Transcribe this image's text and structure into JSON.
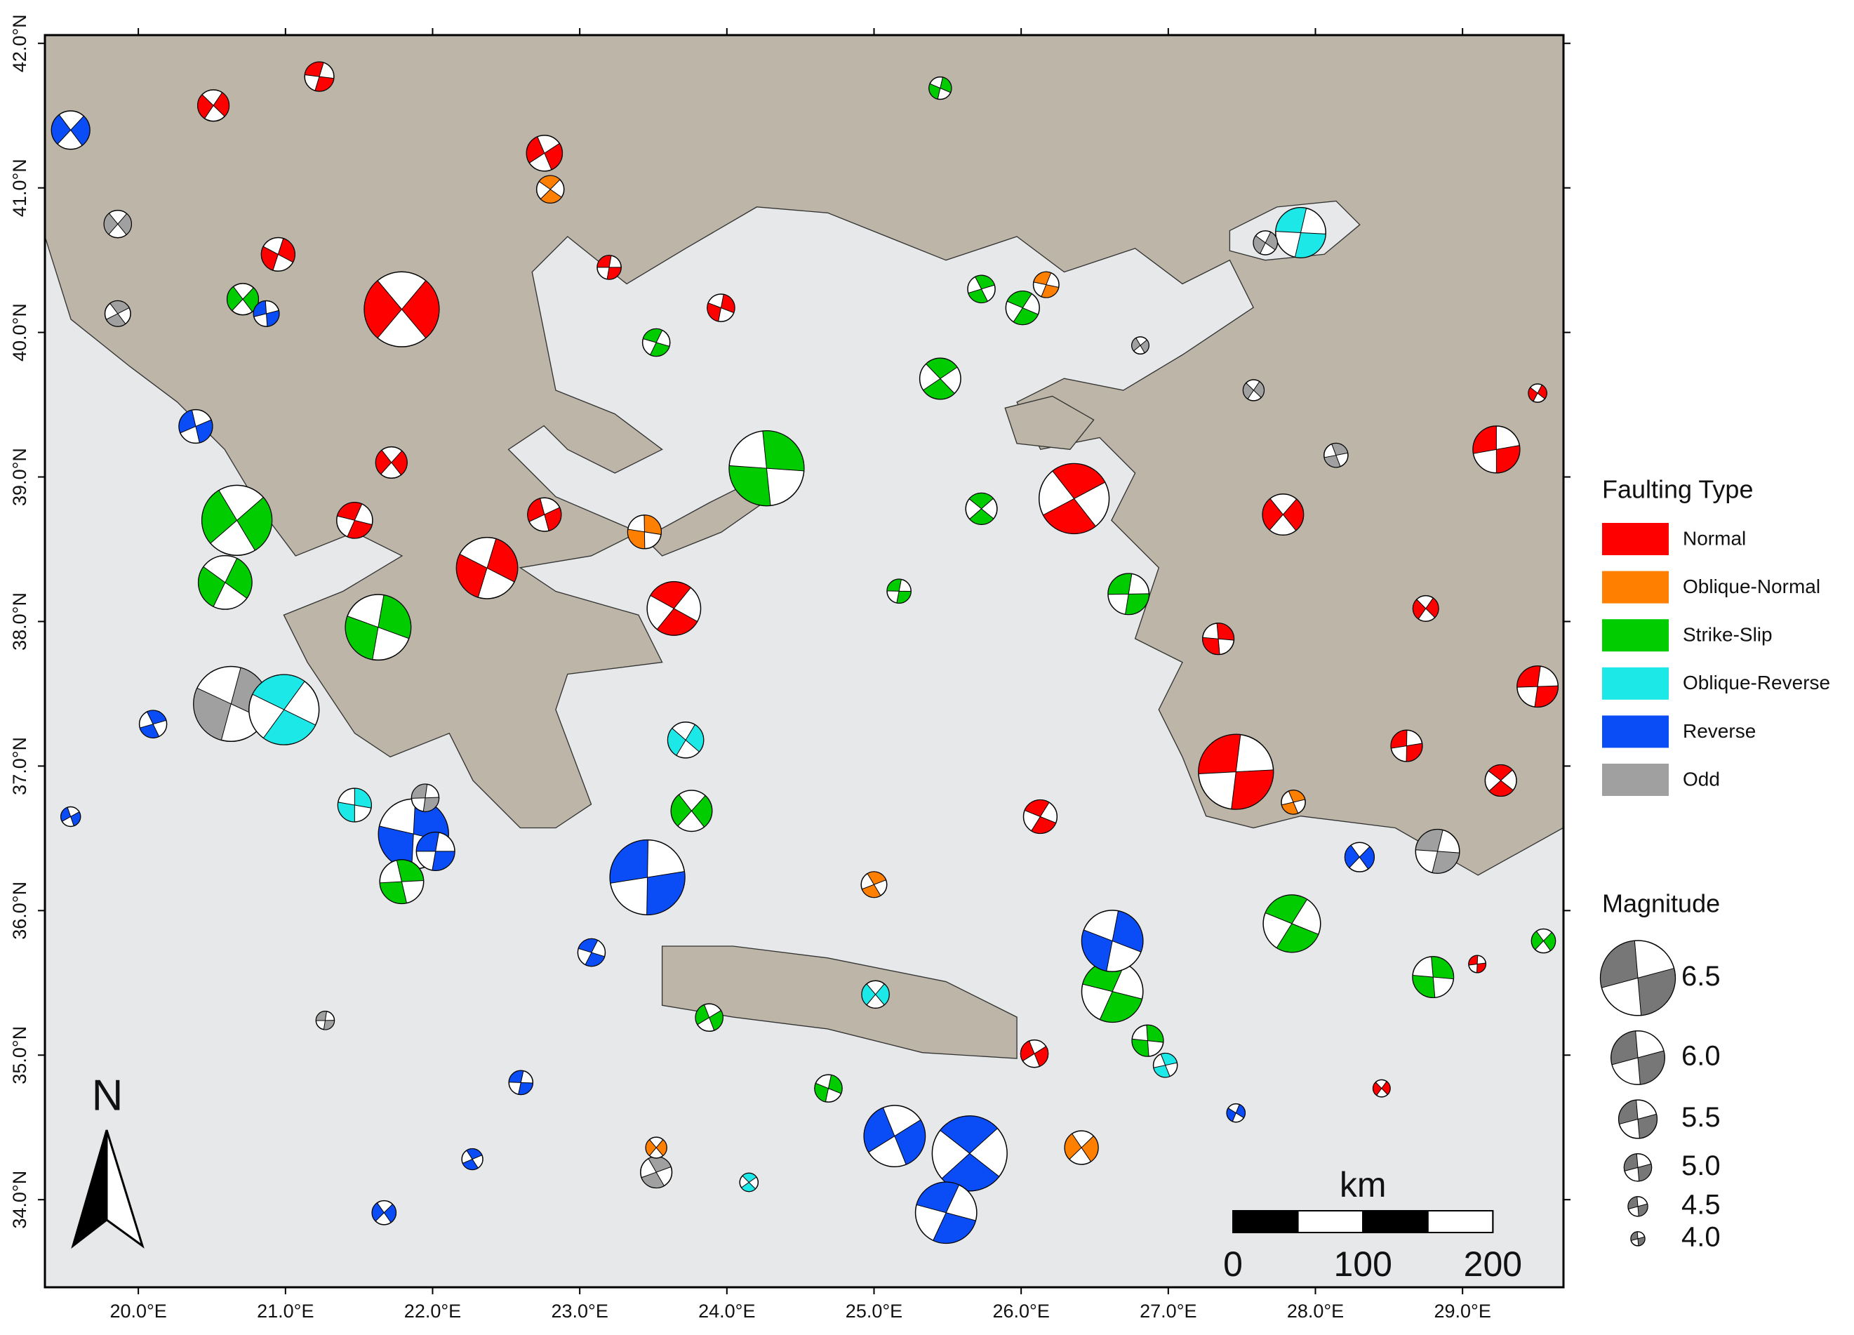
{
  "chart_data": {
    "type": "map",
    "xlim": [
      19.365,
      29.686
    ],
    "ylim": [
      33.394,
      42.057
    ],
    "xticks": [
      {
        "value": 20,
        "label": "20.0°E"
      },
      {
        "value": 21,
        "label": "21.0°E"
      },
      {
        "value": 22,
        "label": "22.0°E"
      },
      {
        "value": 23,
        "label": "23.0°E"
      },
      {
        "value": 24,
        "label": "24.0°E"
      },
      {
        "value": 25,
        "label": "25.0°E"
      },
      {
        "value": 26,
        "label": "26.0°E"
      },
      {
        "value": 27,
        "label": "27.0°E"
      },
      {
        "value": 28,
        "label": "28.0°E"
      },
      {
        "value": 29,
        "label": "29.0°E"
      }
    ],
    "yticks": [
      {
        "value": 34,
        "label": "34.0°N"
      },
      {
        "value": 35,
        "label": "35.0°N"
      },
      {
        "value": 36,
        "label": "36.0°N"
      },
      {
        "value": 37,
        "label": "37.0°N"
      },
      {
        "value": 38,
        "label": "38.0°N"
      },
      {
        "value": 39,
        "label": "39.0°N"
      },
      {
        "value": 40,
        "label": "40.0°N"
      },
      {
        "value": 41,
        "label": "41.0°N"
      },
      {
        "value": 42,
        "label": "42.0°N"
      }
    ],
    "legend": {
      "title": "Faulting Type",
      "position": "right"
    },
    "series": [
      {
        "name": "Normal",
        "color": "#ff0000",
        "x": [
          21.79,
          26.36,
          27.46,
          22.37,
          23.64,
          29.23,
          27.78,
          29.51,
          22.76,
          20.51,
          20.95,
          22.76,
          21.23,
          28.45,
          28.62,
          29.26,
          28.75,
          27.34,
          26.13,
          29.51,
          23.96,
          21.72,
          21.47,
          26.09,
          29.1,
          23.2
        ],
        "y": [
          40.16,
          38.85,
          36.96,
          38.37,
          38.09,
          39.19,
          38.74,
          37.55,
          41.24,
          41.57,
          40.54,
          38.74,
          41.77,
          34.77,
          37.14,
          36.9,
          38.09,
          37.88,
          36.65,
          39.58,
          40.17,
          39.1,
          38.7,
          35.01,
          35.63,
          40.45
        ],
        "magnitude": [
          6.5,
          6.4,
          6.5,
          6.2,
          6.0,
          5.8,
          5.6,
          5.6,
          5.4,
          5.2,
          5.3,
          5.3,
          5.1,
          4.3,
          5.2,
          5.2,
          4.9,
          5.2,
          5.3,
          4.4,
          5.0,
          5.2,
          5.4,
          5.0,
          4.3,
          4.8
        ]
      },
      {
        "name": "Oblique-Normal",
        "color": "#ff8000",
        "x": [
          23.44,
          26.41,
          22.8,
          26.17,
          25.0,
          23.52,
          27.85
        ],
        "y": [
          38.62,
          34.36,
          40.99,
          40.33,
          36.18,
          34.36,
          36.75
        ],
        "magnitude": [
          5.3,
          5.3,
          5.0,
          4.9,
          4.9,
          4.6,
          4.8
        ]
      },
      {
        "name": "Strike-Slip",
        "color": "#00cc00",
        "x": [
          24.27,
          20.67,
          21.63,
          20.59,
          26.62,
          27.84,
          28.8,
          23.76,
          26.73,
          25.45,
          21.79,
          24.69,
          25.45,
          29.55,
          25.73,
          25.17,
          26.86,
          23.88,
          20.71,
          23.52,
          26.01,
          25.73
        ],
        "y": [
          39.06,
          38.7,
          37.96,
          38.27,
          35.44,
          35.91,
          35.54,
          36.69,
          38.19,
          39.68,
          36.2,
          34.77,
          41.69,
          35.79,
          38.78,
          38.21,
          35.1,
          35.26,
          40.23,
          39.93,
          40.17,
          40.3
        ],
        "magnitude": [
          6.5,
          6.4,
          6.3,
          6.0,
          6.2,
          6.1,
          5.6,
          5.6,
          5.6,
          5.6,
          5.7,
          5.0,
          4.7,
          4.8,
          5.2,
          4.8,
          5.2,
          5.0,
          5.2,
          5.0,
          5.3,
          5.0
        ]
      },
      {
        "name": "Oblique-Reverse",
        "color": "#1ce8e8",
        "x": [
          27.9,
          20.99,
          23.72,
          21.47,
          25.01,
          24.15,
          26.98
        ],
        "y": [
          40.69,
          37.39,
          37.18,
          36.73,
          35.42,
          34.12,
          34.93
        ],
        "magnitude": [
          5.9,
          6.4,
          5.4,
          5.3,
          5.0,
          4.4,
          4.8
        ]
      },
      {
        "name": "Reverse",
        "color": "#0a4cf5",
        "x": [
          23.46,
          21.87,
          26.62,
          25.65,
          25.14,
          25.49,
          19.54,
          23.08,
          22.27,
          21.67,
          19.54,
          28.3,
          20.1,
          20.39,
          22.02,
          22.6,
          27.46,
          20.87
        ],
        "y": [
          36.23,
          36.53,
          35.79,
          34.32,
          34.44,
          33.91,
          41.4,
          35.71,
          34.28,
          33.91,
          36.65,
          36.37,
          37.29,
          39.35,
          36.41,
          34.81,
          34.6,
          40.13
        ],
        "magnitude": [
          6.5,
          6.4,
          6.2,
          6.5,
          6.2,
          6.2,
          5.5,
          5.0,
          4.6,
          4.8,
          4.5,
          5.1,
          5.0,
          5.3,
          5.5,
          4.8,
          4.4,
          4.9
        ]
      },
      {
        "name": "Odd",
        "color": "#a0a0a0",
        "x": [
          20.63,
          28.83,
          26.81,
          27.58,
          28.14,
          27.66,
          19.86,
          19.86,
          23.52,
          21.95,
          21.27
        ],
        "y": [
          37.43,
          36.41,
          39.91,
          39.6,
          39.15,
          40.62,
          40.75,
          40.13,
          34.19,
          36.78,
          35.24
        ],
        "magnitude": [
          6.5,
          5.7,
          4.3,
          4.6,
          4.8,
          4.8,
          5.0,
          4.9,
          5.2,
          5.0,
          4.4
        ]
      }
    ],
    "size_legend": {
      "title": "Magnitude",
      "color": "#777777",
      "values": [
        6.5,
        {
          "value": 6,
          "label": "6.0"
        },
        5.5,
        {
          "value": 5,
          "label": "5.0"
        },
        4.5,
        {
          "value": 4,
          "label": "4.0"
        }
      ]
    },
    "scale_bar": {
      "unit": "km",
      "ticks": [
        0,
        100,
        200
      ]
    },
    "north_arrow": "N"
  }
}
